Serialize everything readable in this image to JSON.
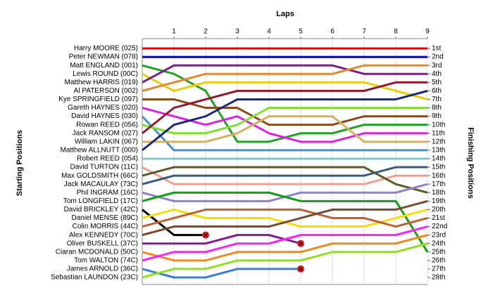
{
  "chart_data": {
    "type": "bump",
    "x_label": "Laps",
    "y_label": "Starting Positions",
    "y2_label": "Finishing Positions",
    "x": [
      0,
      1,
      2,
      3,
      4,
      5,
      6,
      7,
      8,
      9
    ],
    "xlim": [
      0,
      9
    ],
    "xticks": [
      1,
      2,
      3,
      4,
      5,
      6,
      7,
      8,
      9
    ],
    "ylim": [
      1,
      28
    ],
    "y2ticks": [
      {
        "value": 1,
        "label": "1st"
      },
      {
        "value": 2,
        "label": "2nd"
      },
      {
        "value": 3,
        "label": "3rd"
      },
      {
        "value": 4,
        "label": "4th"
      },
      {
        "value": 5,
        "label": "5th"
      },
      {
        "value": 6,
        "label": "6th"
      },
      {
        "value": 7,
        "label": "7th"
      },
      {
        "value": 8,
        "label": "8th"
      },
      {
        "value": 9,
        "label": "9th"
      },
      {
        "value": 10,
        "label": "10th"
      },
      {
        "value": 11,
        "label": "11th"
      },
      {
        "value": 12,
        "label": "12th"
      },
      {
        "value": 13,
        "label": "13th"
      },
      {
        "value": 14,
        "label": "14th"
      },
      {
        "value": 15,
        "label": "15th"
      },
      {
        "value": 16,
        "label": "16th"
      },
      {
        "value": 17,
        "label": "17th"
      },
      {
        "value": 18,
        "label": "18th"
      },
      {
        "value": 19,
        "label": "19th"
      },
      {
        "value": 20,
        "label": "20th"
      },
      {
        "value": 21,
        "label": "21st"
      },
      {
        "value": 22,
        "label": "22nd"
      },
      {
        "value": 23,
        "label": "23rd"
      },
      {
        "value": 24,
        "label": "24th"
      },
      {
        "value": 25,
        "label": "25th"
      },
      {
        "value": 26,
        "label": "26th"
      },
      {
        "value": 27,
        "label": "27th"
      },
      {
        "value": 28,
        "label": "28th"
      }
    ],
    "grid": true,
    "series": [
      {
        "name": "Harry MOORE (025)",
        "color": "#e00000",
        "values": [
          1,
          1,
          1,
          1,
          1,
          1,
          1,
          1,
          1,
          1
        ]
      },
      {
        "name": "Peter NEWMAN (078)",
        "color": "#0000b0",
        "values": [
          2,
          2,
          2,
          2,
          2,
          2,
          2,
          2,
          2,
          2
        ]
      },
      {
        "name": "Matt ENGLAND (001)",
        "color": "#22a022",
        "values": [
          3,
          4,
          6,
          12,
          12,
          11,
          11,
          10,
          10,
          10
        ]
      },
      {
        "name": "Lewis ROUND (00C)",
        "color": "#e8d000",
        "values": [
          4,
          6,
          5,
          5,
          5,
          5,
          5,
          5,
          6,
          7
        ]
      },
      {
        "name": "Matthew HARRIS (019)",
        "color": "#7a1f8a",
        "values": [
          5,
          3,
          3,
          3,
          3,
          3,
          3,
          4,
          4,
          4
        ]
      },
      {
        "name": "Al PATERSON (002)",
        "color": "#e08a30",
        "values": [
          6,
          5,
          4,
          4,
          4,
          4,
          4,
          3,
          3,
          3
        ]
      },
      {
        "name": "Kye SPRINGFIELD (097)",
        "color": "#8b4a1a",
        "values": [
          7,
          7,
          8,
          8,
          10,
          10,
          10,
          9,
          9,
          9
        ]
      },
      {
        "name": "Gareth HAYNES (020)",
        "color": "#e020e0",
        "values": [
          8,
          9,
          10,
          9,
          11,
          12,
          12,
          11,
          11,
          11
        ]
      },
      {
        "name": "David HAYNES (030)",
        "color": "#4a90c8",
        "values": [
          9,
          13,
          13,
          13,
          13,
          13,
          13,
          13,
          13,
          13
        ]
      },
      {
        "name": "Rowan REED (056)",
        "color": "#80e030",
        "values": [
          10,
          11,
          11,
          10,
          8,
          8,
          8,
          8,
          8,
          8
        ]
      },
      {
        "name": "Jack RANSOM (027)",
        "color": "#901a2a",
        "values": [
          11,
          8,
          7,
          6,
          6,
          6,
          6,
          6,
          5,
          5
        ]
      },
      {
        "name": "William LAKIN (067)",
        "color": "#d4b060",
        "values": [
          12,
          12,
          12,
          11,
          9,
          9,
          9,
          12,
          12,
          12
        ]
      },
      {
        "name": "Matthew ALLNUTT (000)",
        "color": "#1a2a7a",
        "values": [
          13,
          10,
          9,
          7,
          7,
          7,
          7,
          7,
          7,
          6
        ]
      },
      {
        "name": "Robert REED (054)",
        "color": "#80c8c8",
        "values": [
          14,
          14,
          14,
          14,
          14,
          14,
          14,
          14,
          14,
          14
        ]
      },
      {
        "name": "David TURTON (11C)",
        "color": "#f0a090",
        "values": [
          15,
          17,
          17,
          17,
          17,
          17,
          17,
          17,
          16,
          16
        ]
      },
      {
        "name": "Max GOLDSMITH (66C)",
        "color": "#5a5a28",
        "values": [
          16,
          15,
          15,
          15,
          15,
          15,
          15,
          15,
          17,
          18
        ]
      },
      {
        "name": "Jack MACAULAY (73C)",
        "color": "#3a5a7a",
        "values": [
          17,
          16,
          16,
          16,
          16,
          16,
          16,
          16,
          15,
          15
        ]
      },
      {
        "name": "Phil INGRAM (16C)",
        "color": "#9080d0",
        "values": [
          18,
          19,
          19,
          19,
          19,
          18,
          18,
          18,
          18,
          17
        ]
      },
      {
        "name": "Tom LONGFIELD (17C)",
        "color": "#10a010",
        "values": [
          19,
          18,
          18,
          18,
          18,
          19,
          19,
          19,
          19,
          25
        ]
      },
      {
        "name": "David BRICKLEY (42C)",
        "color": "#000000",
        "values": [
          20,
          23,
          23,
          null,
          null,
          null,
          null,
          null,
          null,
          null
        ]
      },
      {
        "name": "Daniel MENSE (89C)",
        "color": "#f0e000",
        "values": [
          21,
          20,
          21,
          21,
          21,
          22,
          22,
          22,
          21,
          20
        ]
      },
      {
        "name": "Colin MORRIS (44C)",
        "color": "#c06030",
        "values": [
          22,
          21,
          20,
          20,
          20,
          20,
          21,
          21,
          22,
          21
        ]
      },
      {
        "name": "Alex KENNEDY (70C)",
        "color": "#7a4a30",
        "values": [
          23,
          22,
          22,
          22,
          22,
          21,
          20,
          20,
          20,
          19
        ]
      },
      {
        "name": "Oliver BUSKELL (37C)",
        "color": "#8a1a8a",
        "values": [
          24,
          24,
          24,
          23,
          23,
          24,
          null,
          null,
          null,
          null
        ]
      },
      {
        "name": "Ciaran MCDONALD (50C)",
        "color": "#f08a20",
        "values": [
          25,
          26,
          26,
          25,
          25,
          25,
          24,
          24,
          24,
          23
        ]
      },
      {
        "name": "Tom WALTON (74C)",
        "color": "#ff20ff",
        "values": [
          26,
          25,
          25,
          24,
          24,
          23,
          23,
          23,
          23,
          22
        ]
      },
      {
        "name": "James ARNOLD (36C)",
        "color": "#3a80d0",
        "values": [
          27,
          28,
          28,
          27,
          27,
          27,
          null,
          null,
          null,
          null
        ]
      },
      {
        "name": "Sebastian LAUNDON (23C)",
        "color": "#90e020",
        "values": [
          28,
          27,
          27,
          26,
          26,
          26,
          25,
          25,
          25,
          24
        ]
      }
    ]
  }
}
